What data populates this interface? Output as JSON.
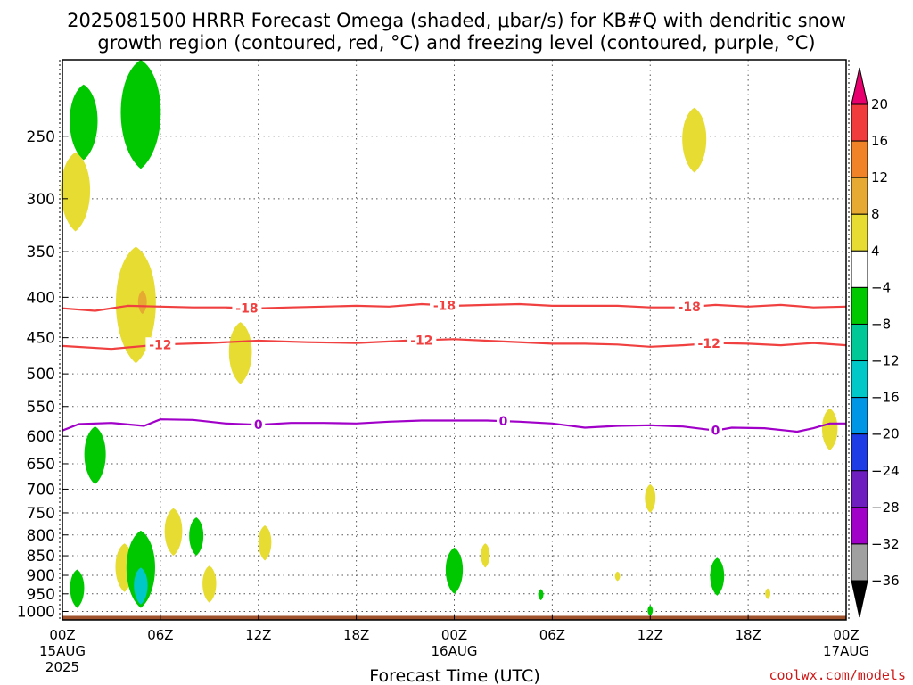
{
  "title_line1": "2025081500 HRRR Forecast Omega (shaded, μbar/s) for KB#Q with dendritic snow",
  "title_line2": "growth region (contoured, red, °C) and freezing level (contoured, purple, °C)",
  "credit": "coolwx.com/models",
  "chart_data": {
    "type": "time-height cross section",
    "xlabel": "Forecast Time (UTC)",
    "x_ticks": [
      {
        "hour": 0,
        "label": "00Z",
        "date": "15AUG",
        "year": "2025"
      },
      {
        "hour": 6,
        "label": "06Z"
      },
      {
        "hour": 12,
        "label": "12Z"
      },
      {
        "hour": 18,
        "label": "18Z"
      },
      {
        "hour": 24,
        "label": "00Z",
        "date": "16AUG"
      },
      {
        "hour": 30,
        "label": "06Z"
      },
      {
        "hour": 36,
        "label": "12Z"
      },
      {
        "hour": 42,
        "label": "18Z"
      },
      {
        "hour": 48,
        "label": "00Z",
        "date": "17AUG"
      }
    ],
    "xlim": [
      0,
      48
    ],
    "y_ticks": [
      250,
      300,
      350,
      400,
      450,
      500,
      550,
      600,
      650,
      700,
      750,
      800,
      850,
      900,
      950,
      1000
    ],
    "ylim_hpa": [
      200,
      1025
    ],
    "y_scale": "log-pressure",
    "grid": true,
    "colorbar": {
      "units": "μbar/s",
      "labels": [
        "20",
        "16",
        "12",
        "8",
        "4",
        "−4",
        "−8",
        "−12",
        "−16",
        "−20",
        "−24",
        "−28",
        "−32",
        "−36"
      ],
      "bins": [
        {
          "lo": 20,
          "hi": null,
          "color": "#e8006e"
        },
        {
          "lo": 16,
          "hi": 20,
          "color": "#f03c3c"
        },
        {
          "lo": 12,
          "hi": 16,
          "color": "#f08228"
        },
        {
          "lo": 8,
          "hi": 12,
          "color": "#e6aa32"
        },
        {
          "lo": 4,
          "hi": 8,
          "color": "#e6dc32"
        },
        {
          "lo": -4,
          "hi": 4,
          "color": "#ffffff"
        },
        {
          "lo": -8,
          "hi": -4,
          "color": "#00c800"
        },
        {
          "lo": -12,
          "hi": -8,
          "color": "#00c896"
        },
        {
          "lo": -16,
          "hi": -12,
          "color": "#00c8c8"
        },
        {
          "lo": -20,
          "hi": -16,
          "color": "#0096e6"
        },
        {
          "lo": -24,
          "hi": -20,
          "color": "#1e3ce6"
        },
        {
          "lo": -28,
          "hi": -24,
          "color": "#6e1ebe"
        },
        {
          "lo": -32,
          "hi": -28,
          "color": "#a000c8"
        },
        {
          "lo": -36,
          "hi": -32,
          "color": "#a0a0a0"
        },
        {
          "lo": null,
          "hi": -36,
          "color": "#000000"
        }
      ]
    },
    "omega_regions": [
      {
        "color": "#00c800",
        "hour": 1.3,
        "p_top": 215,
        "p_bot": 268
      },
      {
        "color": "#00c800",
        "hour": 4.8,
        "p_top": 200,
        "p_bot": 275
      },
      {
        "color": "#e6dc32",
        "hour": 0.8,
        "p_top": 262,
        "p_bot": 330
      },
      {
        "color": "#e6dc32",
        "hour": 4.5,
        "p_top": 345,
        "p_bot": 485
      },
      {
        "color": "#e6aa32",
        "hour": 4.9,
        "p_top": 392,
        "p_bot": 420
      },
      {
        "color": "#e6dc32",
        "hour": 10.9,
        "p_top": 430,
        "p_bot": 515
      },
      {
        "color": "#00c800",
        "hour": 2.0,
        "p_top": 583,
        "p_bot": 690
      },
      {
        "color": "#e6dc32",
        "hour": 6.8,
        "p_top": 740,
        "p_bot": 850
      },
      {
        "color": "#00c800",
        "hour": 8.2,
        "p_top": 760,
        "p_bot": 850
      },
      {
        "color": "#e6dc32",
        "hour": 12.4,
        "p_top": 778,
        "p_bot": 862
      },
      {
        "color": "#e6dc32",
        "hour": 3.8,
        "p_top": 820,
        "p_bot": 945
      },
      {
        "color": "#00c800",
        "hour": 0.9,
        "p_top": 885,
        "p_bot": 990
      },
      {
        "color": "#00c800",
        "hour": 4.8,
        "p_top": 790,
        "p_bot": 990
      },
      {
        "color": "#00c8c8",
        "hour": 4.8,
        "p_top": 880,
        "p_bot": 980
      },
      {
        "color": "#e6dc32",
        "hour": 9.0,
        "p_top": 875,
        "p_bot": 975
      },
      {
        "color": "#00c800",
        "hour": 24.0,
        "p_top": 830,
        "p_bot": 950
      },
      {
        "color": "#e6dc32",
        "hour": 25.9,
        "p_top": 820,
        "p_bot": 880
      },
      {
        "color": "#00c800",
        "hour": 29.3,
        "p_top": 937,
        "p_bot": 968
      },
      {
        "color": "#e6dc32",
        "hour": 36.0,
        "p_top": 690,
        "p_bot": 750
      },
      {
        "color": "#e6dc32",
        "hour": 34.0,
        "p_top": 890,
        "p_bot": 915
      },
      {
        "color": "#00c800",
        "hour": 36.0,
        "p_top": 983,
        "p_bot": 1013
      },
      {
        "color": "#e6dc32",
        "hour": 38.7,
        "p_top": 230,
        "p_bot": 278
      },
      {
        "color": "#00c800",
        "hour": 40.1,
        "p_top": 855,
        "p_bot": 955
      },
      {
        "color": "#e6dc32",
        "hour": 43.2,
        "p_top": 935,
        "p_bot": 965
      },
      {
        "color": "#e6dc32",
        "hour": 47.0,
        "p_top": 553,
        "p_bot": 625
      }
    ],
    "contours": [
      {
        "value": "-18",
        "color": "#f04040",
        "label_hours": [
          11.3,
          23.4,
          38.4
        ],
        "points": [
          [
            0,
            413
          ],
          [
            2,
            416
          ],
          [
            4,
            410
          ],
          [
            6,
            411
          ],
          [
            8,
            412
          ],
          [
            10,
            412
          ],
          [
            12,
            413
          ],
          [
            14,
            412
          ],
          [
            16,
            411
          ],
          [
            18,
            410
          ],
          [
            20,
            411
          ],
          [
            22,
            408
          ],
          [
            24,
            410
          ],
          [
            26,
            409
          ],
          [
            28,
            408
          ],
          [
            30,
            410
          ],
          [
            32,
            410
          ],
          [
            34,
            410
          ],
          [
            36,
            412
          ],
          [
            38,
            412
          ],
          [
            40,
            409
          ],
          [
            42,
            411
          ],
          [
            44,
            409
          ],
          [
            46,
            412
          ],
          [
            48,
            411
          ]
        ]
      },
      {
        "value": "-12",
        "color": "#f04040",
        "label_hours": [
          6.0,
          22.0,
          39.6
        ],
        "points": [
          [
            0,
            461
          ],
          [
            3,
            465
          ],
          [
            6,
            459
          ],
          [
            9,
            457
          ],
          [
            12,
            454
          ],
          [
            15,
            456
          ],
          [
            18,
            457
          ],
          [
            21,
            454
          ],
          [
            24,
            452
          ],
          [
            27,
            455
          ],
          [
            30,
            458
          ],
          [
            32,
            458
          ],
          [
            34,
            459
          ],
          [
            36,
            462
          ],
          [
            38,
            460
          ],
          [
            40,
            457
          ],
          [
            42,
            458
          ],
          [
            44,
            460
          ],
          [
            46,
            457
          ],
          [
            48,
            460
          ]
        ]
      },
      {
        "value": "0",
        "color": "#a000c8",
        "label_hours": [
          12.0,
          27.0,
          40.0
        ],
        "points": [
          [
            0,
            590
          ],
          [
            1,
            579
          ],
          [
            3,
            577
          ],
          [
            5,
            582
          ],
          [
            6,
            571
          ],
          [
            8,
            572
          ],
          [
            10,
            578
          ],
          [
            12,
            580
          ],
          [
            14,
            577
          ],
          [
            16,
            577
          ],
          [
            18,
            578
          ],
          [
            20,
            575
          ],
          [
            22,
            573
          ],
          [
            24,
            573
          ],
          [
            26,
            573
          ],
          [
            28,
            575
          ],
          [
            30,
            578
          ],
          [
            32,
            585
          ],
          [
            34,
            582
          ],
          [
            36,
            581
          ],
          [
            38,
            583
          ],
          [
            40,
            590
          ],
          [
            41,
            585
          ],
          [
            43,
            586
          ],
          [
            45,
            592
          ],
          [
            46,
            586
          ],
          [
            47,
            578
          ],
          [
            48,
            578
          ]
        ]
      }
    ],
    "terrain": {
      "color": "#a0522d",
      "p_top": 1013
    }
  }
}
